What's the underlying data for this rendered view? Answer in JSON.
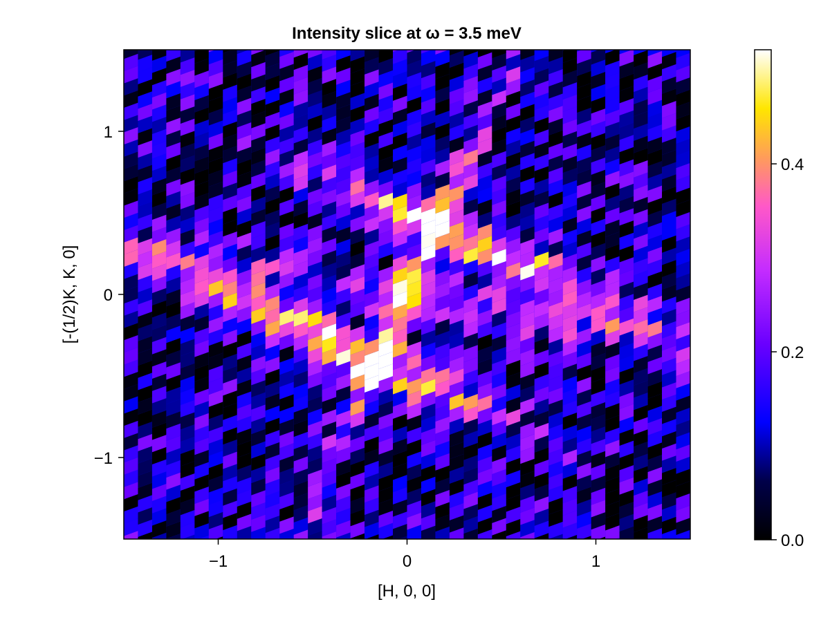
{
  "chart_data": {
    "type": "heatmap",
    "title": "Intensity slice at ω = 3.5 meV",
    "xlabel": "[H, 0, 0]",
    "ylabel": "[-(1/2)K, K, 0]",
    "xlim": [
      -1.5,
      1.5
    ],
    "ylim": [
      -1.5,
      1.5
    ],
    "x_ticks": [
      {
        "value": -1,
        "label": "−1"
      },
      {
        "value": 0,
        "label": "0"
      },
      {
        "value": 1,
        "label": "1"
      }
    ],
    "y_ticks": [
      {
        "value": -1,
        "label": "−1"
      },
      {
        "value": 0,
        "label": "0"
      },
      {
        "value": 1,
        "label": "1"
      }
    ],
    "colorbar": {
      "colormap": "plasma-like (black → blue → violet → magenta → orange → yellow → white)",
      "range": [
        0.0,
        0.5
      ],
      "ticks": [
        {
          "value": 0.0,
          "label": "0.0"
        },
        {
          "value": 0.2,
          "label": "0.2"
        },
        {
          "value": 0.4,
          "label": "0.4"
        }
      ]
    },
    "grid": {
      "nx": 40,
      "ny": 40,
      "cell_shear": "cells sheared along [-(1/2)K, K, 0] (non-orthogonal reciprocal axes)",
      "pattern": "bright bands along K-direction lines through (±0.5, ±0.5) plus a central X-shaped streak; values 0.0–0.5",
      "clipped_max": 0.5
    },
    "colors": {
      "axis": "#000000",
      "background": "#ffffff"
    }
  }
}
